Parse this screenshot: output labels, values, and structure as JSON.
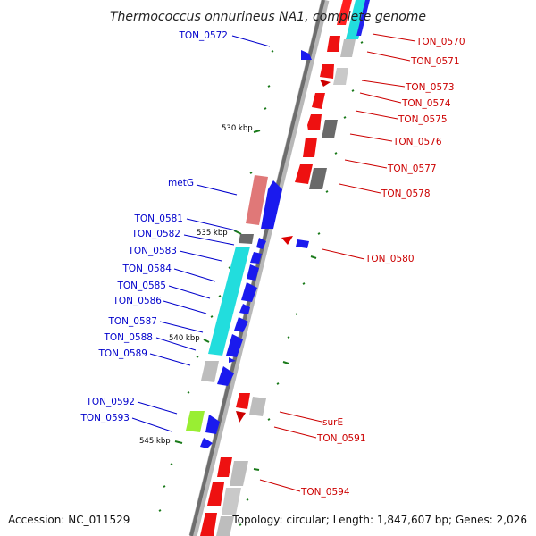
{
  "title": "Thermococcus onnurineus NA1, complete genome",
  "footer": {
    "accession": "Accession: NC_011529",
    "topology": "Topology: circular; Length: 1,847,607 bp; Genes: 2,026"
  },
  "colors": {
    "forward_label": "#0000cc",
    "reverse_label": "#cc0000",
    "backbone": "#777777",
    "tick": "#1a7a1a"
  },
  "kbp_ticks": [
    {
      "label": "530 kbp"
    },
    {
      "label": "535 kbp"
    },
    {
      "label": "540 kbp"
    },
    {
      "label": "545 kbp"
    }
  ],
  "forward_genes": [
    {
      "name": "TON_0572"
    },
    {
      "name": "metG"
    },
    {
      "name": "TON_0581"
    },
    {
      "name": "TON_0582"
    },
    {
      "name": "TON_0583"
    },
    {
      "name": "TON_0584"
    },
    {
      "name": "TON_0585"
    },
    {
      "name": "TON_0586"
    },
    {
      "name": "TON_0587"
    },
    {
      "name": "TON_0588"
    },
    {
      "name": "TON_0589"
    },
    {
      "name": "TON_0592"
    },
    {
      "name": "TON_0593"
    }
  ],
  "reverse_genes": [
    {
      "name": "TON_0570"
    },
    {
      "name": "TON_0571"
    },
    {
      "name": "TON_0573"
    },
    {
      "name": "TON_0574"
    },
    {
      "name": "TON_0575"
    },
    {
      "name": "TON_0576"
    },
    {
      "name": "TON_0577"
    },
    {
      "name": "TON_0578"
    },
    {
      "name": "TON_0580"
    },
    {
      "name": "surE"
    },
    {
      "name": "TON_0591"
    },
    {
      "name": "TON_0594"
    }
  ]
}
